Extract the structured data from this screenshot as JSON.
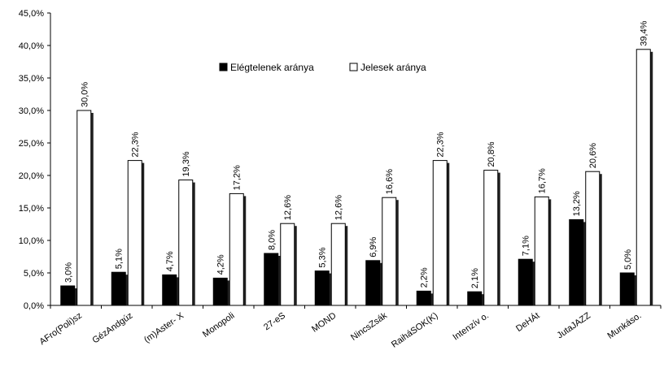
{
  "chart_data": {
    "type": "bar",
    "categories": [
      "AFro(Poli)sz",
      "GézAndgúz",
      "(m)Aster- X",
      "Monopoli",
      "27-eS",
      "MOND",
      "NincsZsák",
      "RaiháSOK(K)",
      "Intenzív o.",
      "DeHÁt",
      "JutaJAZZ",
      "Munkáso."
    ],
    "series": [
      {
        "name": "Elégtelenek aránya",
        "values": [
          3.0,
          5.1,
          4.7,
          4.2,
          8.0,
          5.3,
          6.9,
          2.2,
          2.1,
          7.1,
          13.2,
          5.0
        ],
        "labels": [
          "3,0%",
          "5,1%",
          "4,7%",
          "4,2%",
          "8,0%",
          "5,3%",
          "6,9%",
          "2,2%",
          "2,1%",
          "7,1%",
          "13,2%",
          "5,0%"
        ],
        "color": "#000000"
      },
      {
        "name": "Jelesek aránya",
        "values": [
          30.0,
          22.3,
          19.3,
          17.2,
          12.6,
          12.6,
          16.6,
          22.3,
          20.8,
          16.7,
          20.6,
          39.4
        ],
        "labels": [
          "30,0%",
          "22,3%",
          "19,3%",
          "17,2%",
          "12,6%",
          "12,6%",
          "16,6%",
          "22,3%",
          "20,8%",
          "16,7%",
          "20,6%",
          "39,4%"
        ],
        "color": "#ffffff"
      }
    ],
    "ylim": [
      0,
      45
    ],
    "yticks": [
      "0,0%",
      "5,0%",
      "10,0%",
      "15,0%",
      "20,0%",
      "25,0%",
      "30,0%",
      "35,0%",
      "40,0%",
      "45,0%"
    ],
    "title": "",
    "xlabel": "",
    "ylabel": "",
    "legend_position": "top-center",
    "grid": false
  }
}
